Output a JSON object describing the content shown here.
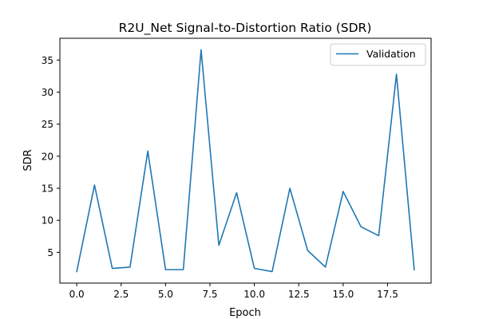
{
  "chart_data": {
    "type": "line",
    "title": "R2U_Net Signal-to-Distortion Ratio (SDR)",
    "xlabel": "Epoch",
    "ylabel": "SDR",
    "xlim": [
      -0.95,
      19.95
    ],
    "ylim": [
      0.2,
      38.4
    ],
    "xticks": [
      0.0,
      2.5,
      5.0,
      7.5,
      10.0,
      12.5,
      15.0,
      17.5
    ],
    "xtick_labels": [
      "0.0",
      "2.5",
      "5.0",
      "7.5",
      "10.0",
      "12.5",
      "15.0",
      "17.5"
    ],
    "yticks": [
      5,
      10,
      15,
      20,
      25,
      30,
      35
    ],
    "ytick_labels": [
      "5",
      "10",
      "15",
      "20",
      "25",
      "30",
      "35"
    ],
    "grid": false,
    "legend_position": "top-right",
    "series": [
      {
        "name": "Validation",
        "color": "#1f77b4",
        "x": [
          0,
          1,
          2,
          3,
          4,
          5,
          6,
          7,
          8,
          9,
          10,
          11,
          12,
          13,
          14,
          15,
          16,
          17,
          18,
          19
        ],
        "y": [
          2.0,
          15.5,
          2.5,
          2.7,
          20.8,
          2.3,
          2.3,
          36.6,
          6.1,
          14.3,
          2.5,
          2.0,
          15.0,
          5.3,
          2.7,
          14.5,
          9.0,
          7.6,
          32.8,
          2.3
        ]
      }
    ]
  }
}
